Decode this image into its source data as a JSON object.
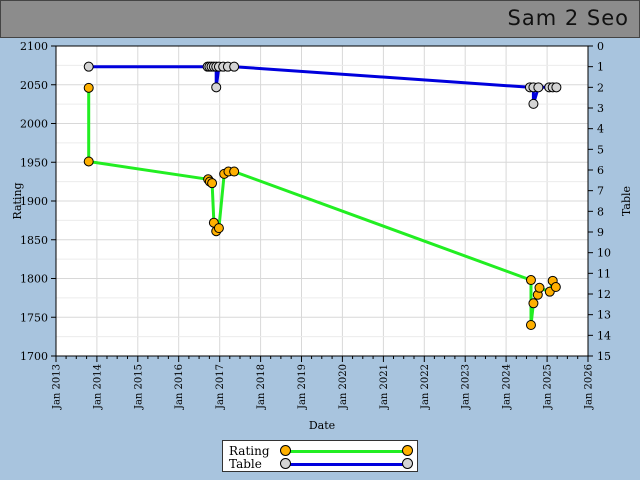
{
  "header": {
    "title": "Sam 2 Seo"
  },
  "legend": [
    {
      "label": "Rating",
      "line_color": "#22ee22",
      "marker_color": "#ffb000"
    },
    {
      "label": "Table",
      "line_color": "#0000dd",
      "marker_color": "#d4d4d4"
    }
  ],
  "chart_data": {
    "type": "line",
    "xlabel": "Date",
    "ylabel": "Rating",
    "y2label": "Table",
    "xlim": [
      "2013-01-01",
      "2026-01-01"
    ],
    "ylim": [
      1700,
      2100
    ],
    "y2lim": [
      0,
      15
    ],
    "y2_inverted": true,
    "x_ticks": [
      "Jan 2013",
      "Jan 2014",
      "Jan 2015",
      "Jan 2016",
      "Jan 2017",
      "Jan 2018",
      "Jan 2019",
      "Jan 2020",
      "Jan 2021",
      "Jan 2022",
      "Jan 2023",
      "Jan 2024",
      "Jan 2025",
      "Jan 2026"
    ],
    "y_ticks": [
      1700,
      1750,
      1800,
      1850,
      1900,
      1950,
      2000,
      2050,
      2100
    ],
    "y2_ticks": [
      0,
      1,
      2,
      3,
      4,
      5,
      6,
      7,
      8,
      9,
      10,
      11,
      12,
      13,
      14,
      15
    ],
    "grid": true,
    "series": [
      {
        "name": "Rating",
        "axis": "left",
        "color": "#22ee22",
        "marker": "#ffb000",
        "points": [
          [
            "2013-10-20",
            2046
          ],
          [
            "2013-10-20",
            1951
          ],
          [
            "2016-09-20",
            1928
          ],
          [
            "2016-10-05",
            1925
          ],
          [
            "2016-10-25",
            1923
          ],
          [
            "2016-11-10",
            1872
          ],
          [
            "2016-12-01",
            1861
          ],
          [
            "2016-12-25",
            1865
          ],
          [
            "2017-02-10",
            1935
          ],
          [
            "2017-03-20",
            1938
          ],
          [
            "2017-05-10",
            1938
          ],
          [
            "2024-08-10",
            1798
          ],
          [
            "2024-08-10",
            1740
          ],
          [
            "2024-09-01",
            1768
          ],
          [
            "2024-10-10",
            1779
          ],
          [
            "2024-10-25",
            1788
          ],
          [
            "2025-01-25",
            1783
          ],
          [
            "2025-02-20",
            1797
          ],
          [
            "2025-03-20",
            1789
          ]
        ]
      },
      {
        "name": "Table",
        "axis": "right",
        "color": "#0000dd",
        "marker": "#d4d4d4",
        "points": [
          [
            "2013-10-20",
            1
          ],
          [
            "2016-09-15",
            1
          ],
          [
            "2016-10-01",
            1
          ],
          [
            "2016-10-20",
            1
          ],
          [
            "2016-11-10",
            1
          ],
          [
            "2016-12-01",
            1
          ],
          [
            "2016-12-01",
            2
          ],
          [
            "2016-12-25",
            1
          ],
          [
            "2017-02-01",
            1
          ],
          [
            "2017-03-15",
            1
          ],
          [
            "2017-05-10",
            1
          ],
          [
            "2024-08-01",
            2
          ],
          [
            "2024-09-01",
            2
          ],
          [
            "2024-09-01",
            2.8
          ],
          [
            "2024-10-15",
            2
          ],
          [
            "2025-01-20",
            2
          ],
          [
            "2025-02-20",
            2
          ],
          [
            "2025-03-25",
            2
          ]
        ]
      }
    ]
  }
}
